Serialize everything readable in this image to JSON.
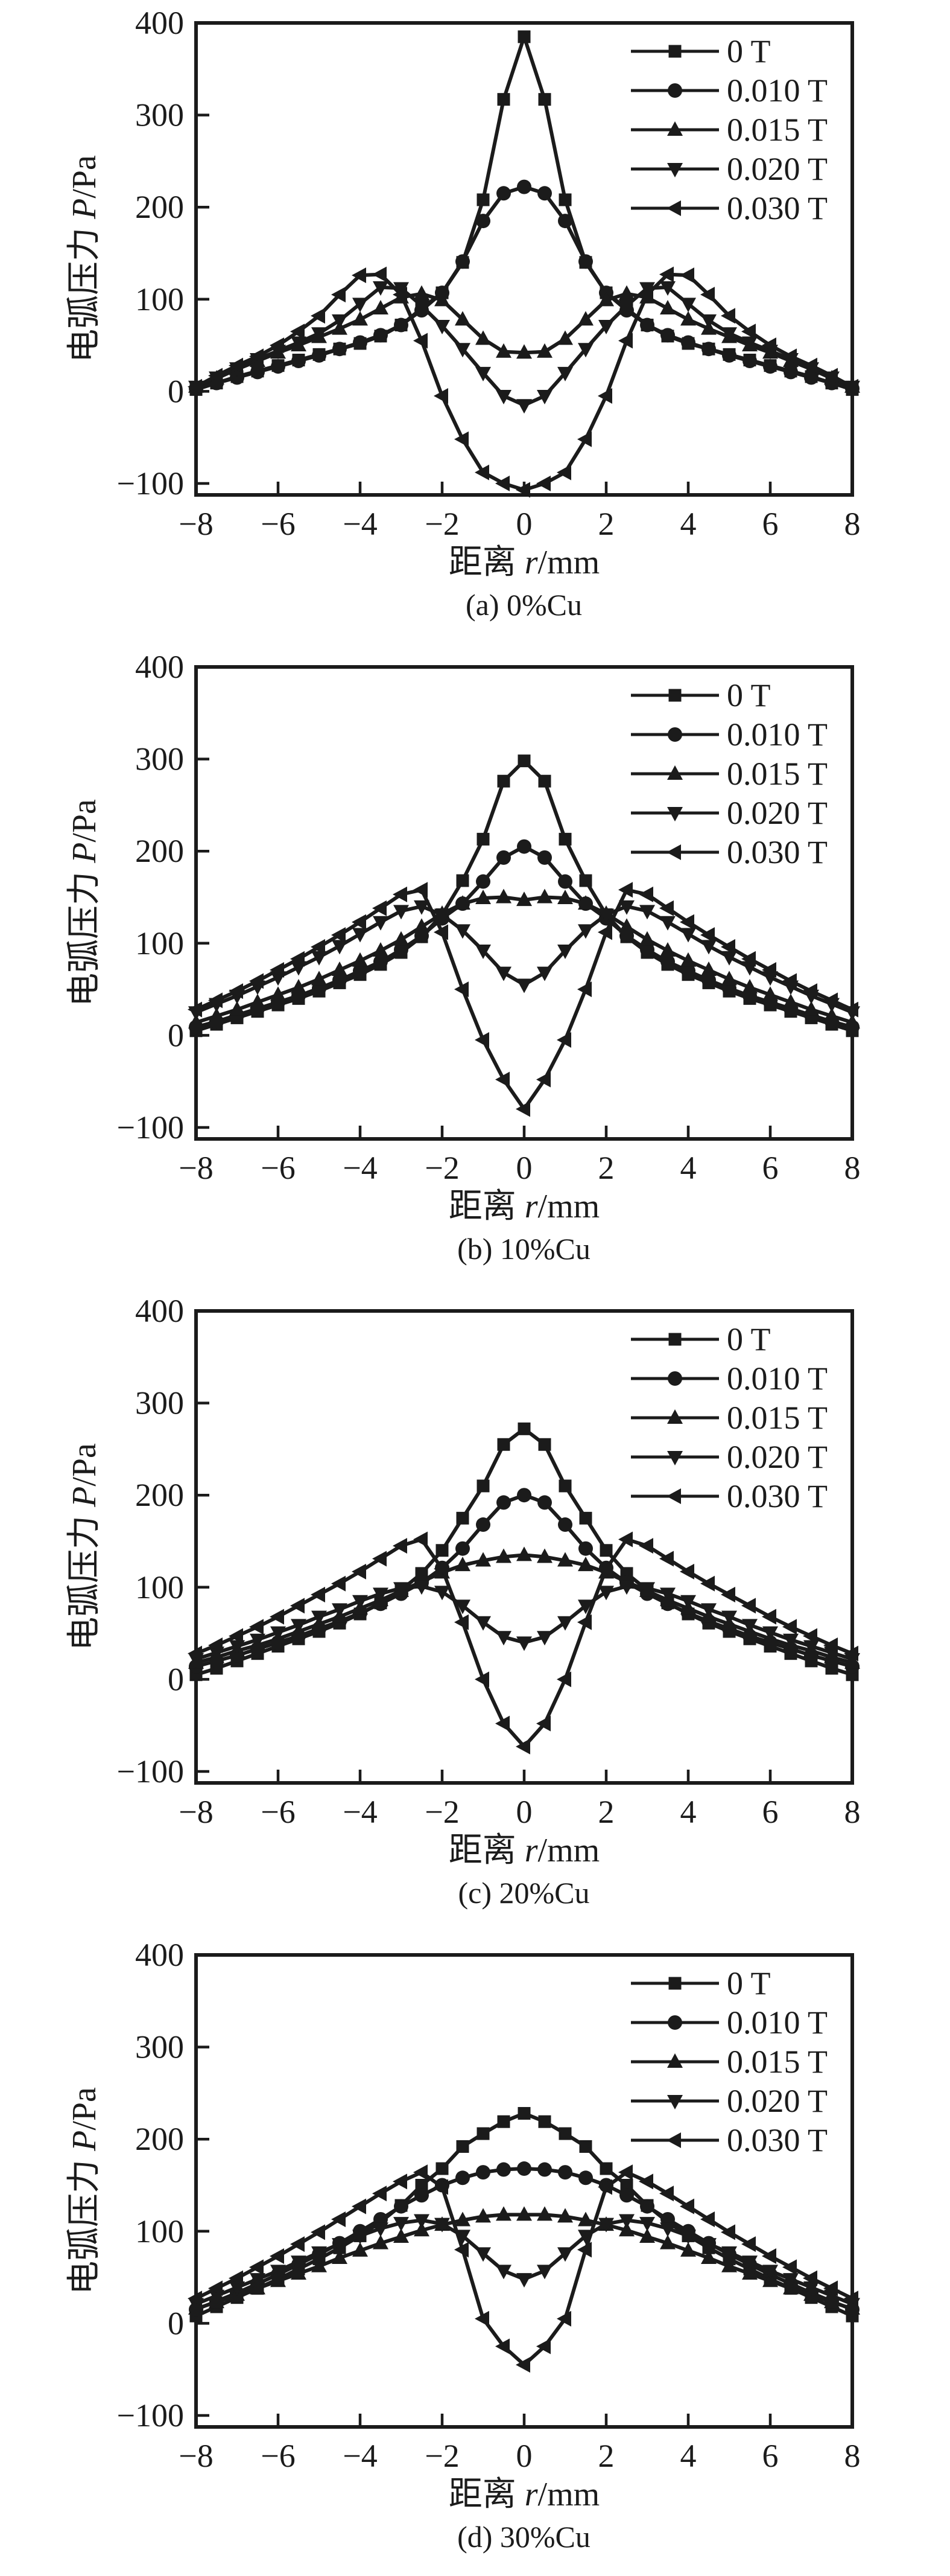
{
  "figure": {
    "background": "#ffffff",
    "ink_color": "#1b1b1b",
    "axis": {
      "xlabel": "距离 r/mm",
      "xlabel_cn": "距离 ",
      "xlabel_var": "r",
      "xlabel_unit": "/mm",
      "ylabel": "电弧压力 P/Pa",
      "ylabel_cn": "电弧压力 ",
      "ylabel_var": "P",
      "ylabel_unit": "/Pa"
    },
    "legend_labels": [
      "0 T",
      "0.010 T",
      "0.015 T",
      "0.020 T",
      "0.030 T"
    ]
  },
  "chart_data": [
    {
      "type": "line",
      "caption": "(a) 0%Cu",
      "xlabel": "距离 r/mm",
      "ylabel": "电弧压力 P/Pa",
      "xlim": [
        -8,
        8
      ],
      "ylim": [
        -125,
        400
      ],
      "xticks": [
        -8,
        -6,
        -4,
        -2,
        0,
        2,
        4,
        6,
        8
      ],
      "yticks": [
        -100,
        0,
        100,
        200,
        300,
        400
      ],
      "grid": false,
      "legend_position": "top-right",
      "x": [
        -8,
        -7.5,
        -7,
        -6.5,
        -6,
        -5.5,
        -5,
        -4.5,
        -4,
        -3.5,
        -3,
        -2.5,
        -2,
        -1.5,
        -1,
        -0.5,
        0,
        0.5,
        1,
        1.5,
        2,
        2.5,
        3,
        3.5,
        4,
        4.5,
        5,
        5.5,
        6,
        6.5,
        7,
        7.5,
        8
      ],
      "series": [
        {
          "name": "0 T",
          "marker": "square",
          "values": [
            2,
            9,
            16,
            22,
            28,
            34,
            40,
            46,
            52,
            60,
            72,
            90,
            107,
            140,
            208,
            317,
            385,
            317,
            208,
            140,
            107,
            90,
            72,
            60,
            52,
            46,
            40,
            34,
            28,
            22,
            16,
            9,
            2
          ]
        },
        {
          "name": "0.010 T",
          "marker": "circle",
          "values": [
            3,
            9,
            15,
            21,
            27,
            33,
            39,
            46,
            53,
            61,
            72,
            88,
            107,
            141,
            185,
            215,
            222,
            215,
            185,
            141,
            107,
            88,
            72,
            61,
            53,
            46,
            39,
            33,
            27,
            21,
            15,
            9,
            3
          ]
        },
        {
          "name": "0.015 T",
          "marker": "triangle-up",
          "values": [
            5,
            14,
            24,
            33,
            42,
            50,
            59,
            68,
            78,
            90,
            102,
            106,
            99,
            78,
            57,
            43,
            42,
            43,
            57,
            78,
            99,
            106,
            102,
            90,
            78,
            68,
            59,
            50,
            42,
            33,
            24,
            14,
            5
          ]
        },
        {
          "name": "0.020 T",
          "marker": "triangle-down",
          "values": [
            5,
            15,
            25,
            35,
            44,
            53,
            63,
            77,
            95,
            113,
            112,
            93,
            71,
            46,
            20,
            -5,
            -15,
            -5,
            20,
            46,
            71,
            93,
            112,
            113,
            95,
            77,
            63,
            53,
            44,
            35,
            25,
            15,
            5
          ]
        },
        {
          "name": "0.030 T",
          "marker": "triangle-left",
          "values": [
            5,
            17,
            28,
            38,
            50,
            65,
            82,
            105,
            126,
            127,
            105,
            55,
            -5,
            -52,
            -88,
            -100,
            -107,
            -100,
            -88,
            -52,
            -5,
            55,
            105,
            127,
            126,
            105,
            82,
            65,
            50,
            38,
            28,
            17,
            5
          ]
        }
      ]
    },
    {
      "type": "line",
      "caption": "(b) 10%Cu",
      "xlabel": "距离 r/mm",
      "ylabel": "电弧压力 P/Pa",
      "xlim": [
        -8,
        8
      ],
      "ylim": [
        -125,
        400
      ],
      "xticks": [
        -8,
        -6,
        -4,
        -2,
        0,
        2,
        4,
        6,
        8
      ],
      "yticks": [
        -100,
        0,
        100,
        200,
        300,
        400
      ],
      "grid": false,
      "legend_position": "top-right",
      "x": [
        -8,
        -7.5,
        -7,
        -6.5,
        -6,
        -5.5,
        -5,
        -4.5,
        -4,
        -3.5,
        -3,
        -2.5,
        -2,
        -1.5,
        -1,
        -0.5,
        0,
        0.5,
        1,
        1.5,
        2,
        2.5,
        3,
        3.5,
        4,
        4.5,
        5,
        5.5,
        6,
        6.5,
        7,
        7.5,
        8
      ],
      "series": [
        {
          "name": "0 T",
          "marker": "square",
          "values": [
            5,
            12,
            19,
            26,
            33,
            40,
            48,
            57,
            66,
            77,
            90,
            107,
            131,
            168,
            213,
            276,
            298,
            276,
            213,
            168,
            131,
            107,
            90,
            77,
            66,
            57,
            48,
            40,
            33,
            26,
            19,
            12,
            5
          ]
        },
        {
          "name": "0.010 T",
          "marker": "circle",
          "values": [
            9,
            15,
            22,
            29,
            36,
            43,
            51,
            60,
            70,
            80,
            93,
            108,
            127,
            143,
            167,
            193,
            205,
            193,
            167,
            143,
            127,
            108,
            93,
            80,
            70,
            60,
            51,
            43,
            36,
            29,
            22,
            15,
            9
          ]
        },
        {
          "name": "0.015 T",
          "marker": "triangle-up",
          "values": [
            14,
            21,
            28,
            36,
            44,
            52,
            61,
            71,
            81,
            92,
            104,
            118,
            132,
            143,
            149,
            150,
            147,
            150,
            149,
            143,
            132,
            118,
            104,
            92,
            81,
            71,
            61,
            52,
            44,
            36,
            28,
            21,
            14
          ]
        },
        {
          "name": "0.020 T",
          "marker": "triangle-down",
          "values": [
            25,
            34,
            43,
            53,
            63,
            74,
            85,
            97,
            110,
            123,
            135,
            140,
            131,
            114,
            92,
            68,
            55,
            68,
            92,
            114,
            131,
            140,
            135,
            123,
            110,
            97,
            85,
            74,
            63,
            53,
            43,
            34,
            25
          ]
        },
        {
          "name": "0.030 T",
          "marker": "triangle-left",
          "values": [
            28,
            38,
            48,
            59,
            71,
            83,
            96,
            109,
            123,
            138,
            153,
            158,
            112,
            50,
            -5,
            -48,
            -80,
            -48,
            -5,
            50,
            112,
            158,
            153,
            138,
            123,
            109,
            96,
            83,
            71,
            59,
            48,
            38,
            28
          ]
        }
      ]
    },
    {
      "type": "line",
      "caption": "(c) 20%Cu",
      "xlabel": "距离 r/mm",
      "ylabel": "电弧压力 P/Pa",
      "xlim": [
        -8,
        8
      ],
      "ylim": [
        -125,
        400
      ],
      "xticks": [
        -8,
        -6,
        -4,
        -2,
        0,
        2,
        4,
        6,
        8
      ],
      "yticks": [
        -100,
        0,
        100,
        200,
        300,
        400
      ],
      "grid": false,
      "legend_position": "top-right",
      "x": [
        -8,
        -7.5,
        -7,
        -6.5,
        -6,
        -5.5,
        -5,
        -4.5,
        -4,
        -3.5,
        -3,
        -2.5,
        -2,
        -1.5,
        -1,
        -0.5,
        0,
        0.5,
        1,
        1.5,
        2,
        2.5,
        3,
        3.5,
        4,
        4.5,
        5,
        5.5,
        6,
        6.5,
        7,
        7.5,
        8
      ],
      "series": [
        {
          "name": "0 T",
          "marker": "square",
          "values": [
            5,
            12,
            20,
            28,
            36,
            44,
            52,
            61,
            71,
            83,
            97,
            115,
            140,
            175,
            210,
            255,
            272,
            255,
            210,
            175,
            140,
            115,
            97,
            83,
            71,
            61,
            52,
            44,
            36,
            28,
            20,
            12,
            5
          ]
        },
        {
          "name": "0.010 T",
          "marker": "circle",
          "values": [
            14,
            20,
            26,
            33,
            40,
            47,
            55,
            63,
            72,
            82,
            93,
            105,
            121,
            142,
            168,
            192,
            200,
            192,
            168,
            142,
            121,
            105,
            93,
            82,
            72,
            63,
            55,
            47,
            40,
            33,
            26,
            20,
            14
          ]
        },
        {
          "name": "0.015 T",
          "marker": "triangle-up",
          "values": [
            18,
            24,
            31,
            37,
            44,
            52,
            60,
            68,
            77,
            86,
            96,
            106,
            116,
            124,
            129,
            133,
            135,
            133,
            129,
            124,
            116,
            106,
            96,
            86,
            77,
            68,
            60,
            52,
            44,
            37,
            31,
            24,
            18
          ]
        },
        {
          "name": "0.020 T",
          "marker": "triangle-down",
          "values": [
            22,
            29,
            36,
            43,
            51,
            59,
            68,
            76,
            85,
            93,
            99,
            101,
            95,
            80,
            62,
            46,
            40,
            46,
            62,
            80,
            95,
            101,
            99,
            93,
            85,
            76,
            68,
            59,
            51,
            43,
            36,
            29,
            22
          ]
        },
        {
          "name": "0.030 T",
          "marker": "triangle-left",
          "values": [
            28,
            37,
            47,
            57,
            68,
            80,
            92,
            104,
            117,
            131,
            145,
            152,
            120,
            62,
            0,
            -48,
            -73,
            -48,
            0,
            62,
            120,
            152,
            145,
            131,
            117,
            104,
            92,
            80,
            68,
            57,
            47,
            37,
            28
          ]
        }
      ]
    },
    {
      "type": "line",
      "caption": "(d) 30%Cu",
      "xlabel": "距离 r/mm",
      "ylabel": "电弧压力 P/Pa",
      "xlim": [
        -8,
        8
      ],
      "ylim": [
        -125,
        400
      ],
      "xticks": [
        -8,
        -6,
        -4,
        -2,
        0,
        2,
        4,
        6,
        8
      ],
      "yticks": [
        -100,
        0,
        100,
        200,
        300,
        400
      ],
      "grid": false,
      "legend_position": "top-right",
      "x": [
        -8,
        -7.5,
        -7,
        -6.5,
        -6,
        -5.5,
        -5,
        -4.5,
        -4,
        -3.5,
        -3,
        -2.5,
        -2,
        -1.5,
        -1,
        -0.5,
        0,
        0.5,
        1,
        1.5,
        2,
        2.5,
        3,
        3.5,
        4,
        4.5,
        5,
        5.5,
        6,
        6.5,
        7,
        7.5,
        8
      ],
      "series": [
        {
          "name": "0 T",
          "marker": "square",
          "values": [
            8,
            18,
            28,
            38,
            48,
            59,
            70,
            82,
            95,
            110,
            128,
            150,
            168,
            192,
            206,
            219,
            228,
            219,
            206,
            192,
            168,
            150,
            128,
            110,
            95,
            82,
            70,
            59,
            48,
            38,
            28,
            18,
            8
          ]
        },
        {
          "name": "0.010 T",
          "marker": "circle",
          "values": [
            15,
            24,
            33,
            43,
            53,
            64,
            75,
            87,
            100,
            113,
            127,
            139,
            150,
            158,
            164,
            167,
            168,
            167,
            164,
            158,
            150,
            139,
            127,
            113,
            100,
            87,
            75,
            64,
            53,
            43,
            33,
            24,
            15
          ]
        },
        {
          "name": "0.015 T",
          "marker": "triangle-up",
          "values": [
            16,
            23,
            31,
            38,
            46,
            54,
            62,
            71,
            79,
            87,
            94,
            101,
            107,
            112,
            116,
            118,
            118,
            118,
            116,
            112,
            107,
            101,
            94,
            87,
            79,
            71,
            62,
            54,
            46,
            38,
            31,
            23,
            16
          ]
        },
        {
          "name": "0.020 T",
          "marker": "triangle-down",
          "values": [
            21,
            30,
            39,
            48,
            57,
            67,
            77,
            86,
            95,
            103,
            109,
            112,
            108,
            95,
            76,
            57,
            48,
            57,
            76,
            95,
            108,
            112,
            109,
            103,
            95,
            86,
            77,
            67,
            57,
            48,
            39,
            30,
            21
          ]
        },
        {
          "name": "0.030 T",
          "marker": "triangle-left",
          "values": [
            27,
            38,
            49,
            61,
            73,
            86,
            99,
            113,
            127,
            141,
            154,
            164,
            148,
            80,
            5,
            -25,
            -45,
            -25,
            5,
            80,
            148,
            164,
            154,
            141,
            127,
            113,
            99,
            86,
            73,
            61,
            49,
            38,
            27
          ]
        }
      ]
    }
  ]
}
